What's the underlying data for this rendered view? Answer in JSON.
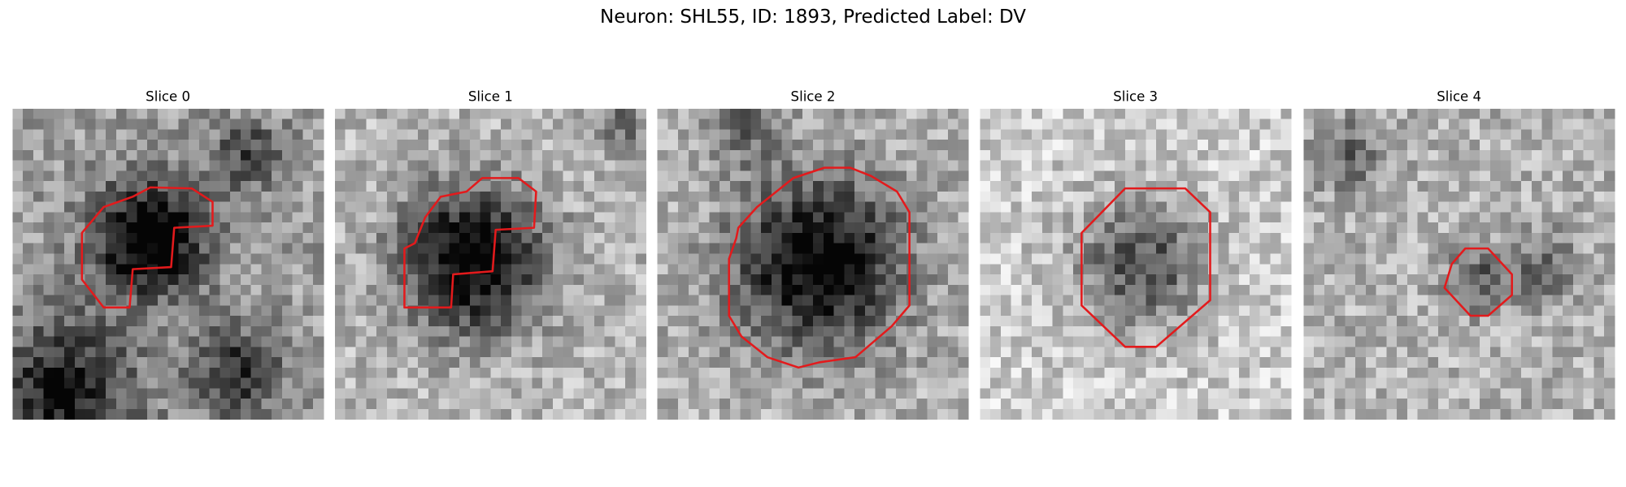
{
  "title": "Neuron: SHL55, ID: 1893, Predicted Label: DV",
  "panels": [
    {
      "title": "Slice 0"
    },
    {
      "title": "Slice 1"
    },
    {
      "title": "Slice 2"
    },
    {
      "title": "Slice 3"
    },
    {
      "title": "Slice 4"
    }
  ]
}
